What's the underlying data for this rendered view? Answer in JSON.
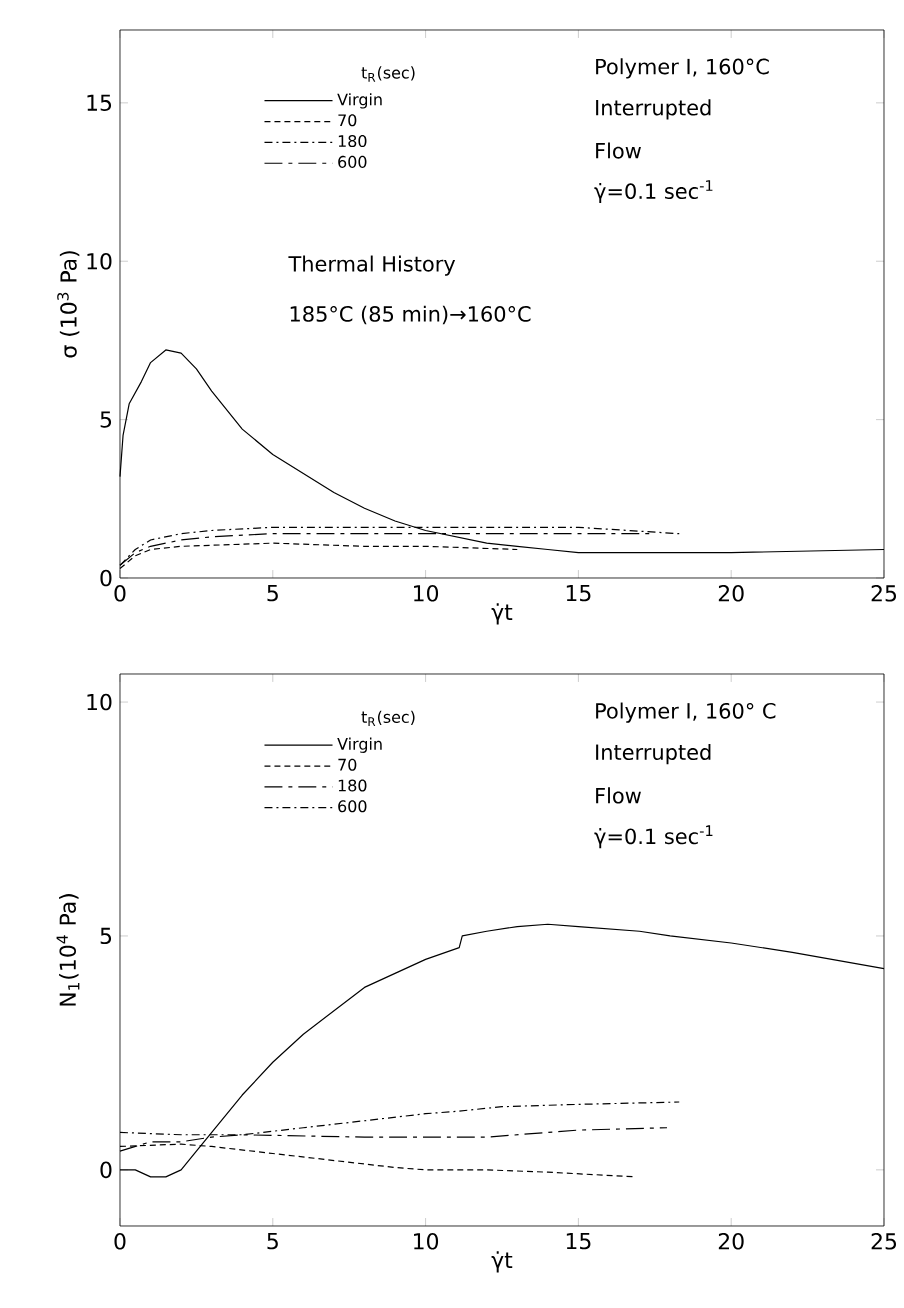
{
  "chart_data": [
    {
      "type": "line",
      "xlabel": "γ̇t",
      "ylabel": "σ (10$^{3}$ Pa)",
      "legend_title": "t$_{R}$(sec)",
      "legend": "top",
      "xlim": [
        0,
        25
      ],
      "ylim": [
        0,
        17.3
      ],
      "xticks": [
        0,
        5,
        10,
        15,
        20,
        25
      ],
      "yticks": [
        0,
        5,
        10,
        15
      ],
      "grid": false,
      "marker": "none",
      "annotations": [
        "Polymer I, 160°C",
        "Interrupted",
        "Flow",
        "γ̇=0.1 sec$^{-1}$",
        "Thermal History",
        "185°C (85 min)→160°C"
      ],
      "series": [
        {
          "name": "Virgin",
          "color": "#000000",
          "line_style": "solid",
          "x": [
            0,
            0.1,
            0.3,
            0.7,
            1.0,
            1.5,
            2.0,
            2.5,
            3,
            4,
            5,
            6,
            7,
            8,
            9,
            10,
            11,
            12,
            13,
            14,
            15,
            20,
            25
          ],
          "values": [
            3.2,
            4.5,
            5.5,
            6.2,
            6.8,
            7.2,
            7.1,
            6.6,
            5.9,
            4.7,
            3.9,
            3.3,
            2.7,
            2.2,
            1.8,
            1.5,
            1.3,
            1.1,
            1.0,
            0.9,
            0.8,
            0.8,
            0.9
          ]
        },
        {
          "name": "70",
          "color": "#000000",
          "line_style": "dashed",
          "x": [
            0,
            0.5,
            1,
            2,
            5,
            8,
            10,
            13
          ],
          "values": [
            0.3,
            0.7,
            0.9,
            1.0,
            1.1,
            1.0,
            1.0,
            0.9
          ]
        },
        {
          "name": "180",
          "color": "#000000",
          "line_style": "dashdot",
          "x": [
            0,
            0.5,
            1,
            2,
            3,
            5,
            8,
            10,
            12,
            15,
            18.3
          ],
          "values": [
            0.4,
            0.9,
            1.2,
            1.4,
            1.5,
            1.6,
            1.6,
            1.6,
            1.6,
            1.6,
            1.4
          ]
        },
        {
          "name": "600",
          "color": "#000000",
          "line_style": "longdashdot",
          "x": [
            0,
            0.5,
            1,
            2,
            3,
            5,
            8,
            10,
            12,
            15,
            17.5
          ],
          "values": [
            0.4,
            0.8,
            1.0,
            1.2,
            1.3,
            1.4,
            1.4,
            1.4,
            1.4,
            1.4,
            1.4
          ]
        }
      ]
    },
    {
      "type": "line",
      "xlabel": "γ̇t",
      "ylabel": "N$_{1}$(10$^{4}$ Pa)",
      "legend_title": "t$_{R}$(sec)",
      "legend": "top",
      "xlim": [
        0,
        25
      ],
      "ylim": [
        -1.2,
        10.6
      ],
      "xticks": [
        0,
        5,
        10,
        15,
        20,
        25
      ],
      "yticks": [
        0,
        5,
        10
      ],
      "grid": false,
      "marker": "none",
      "annotations": [
        "Polymer I, 160° C",
        "Interrupted",
        "Flow",
        "γ̇=0.1 sec$^{-1}$"
      ],
      "series": [
        {
          "name": "Virgin",
          "color": "#000000",
          "line_style": "solid",
          "x": [
            0,
            0.5,
            1.0,
            1.5,
            2,
            2.5,
            3,
            4,
            5,
            6,
            7,
            8,
            9,
            10,
            11.1,
            11.2,
            12,
            13,
            14,
            15,
            17,
            18,
            20,
            22,
            25
          ],
          "values": [
            0.0,
            0.0,
            -0.15,
            -0.15,
            0.0,
            0.4,
            0.8,
            1.6,
            2.3,
            2.9,
            3.4,
            3.9,
            4.2,
            4.5,
            4.75,
            5.0,
            5.1,
            5.2,
            5.25,
            5.2,
            5.1,
            5.0,
            4.85,
            4.65,
            4.3
          ]
        },
        {
          "name": "70",
          "color": "#000000",
          "line_style": "dashed",
          "x": [
            0,
            2,
            3,
            5,
            7,
            9,
            10,
            12,
            14,
            16.9
          ],
          "values": [
            0.5,
            0.55,
            0.5,
            0.35,
            0.2,
            0.05,
            0.0,
            0.0,
            -0.05,
            -0.15
          ]
        },
        {
          "name": "180",
          "color": "#000000",
          "line_style": "longdashdot",
          "x": [
            0,
            1,
            2,
            3,
            4,
            8,
            12,
            15,
            17.9
          ],
          "values": [
            0.4,
            0.6,
            0.6,
            0.7,
            0.75,
            0.7,
            0.7,
            0.85,
            0.9
          ]
        },
        {
          "name": "600",
          "color": "#000000",
          "line_style": "dashdot",
          "x": [
            0,
            2,
            4,
            6,
            8,
            10,
            11,
            12.5,
            15,
            18.3
          ],
          "values": [
            0.8,
            0.75,
            0.75,
            0.9,
            1.05,
            1.2,
            1.25,
            1.35,
            1.4,
            1.45
          ]
        }
      ]
    }
  ]
}
